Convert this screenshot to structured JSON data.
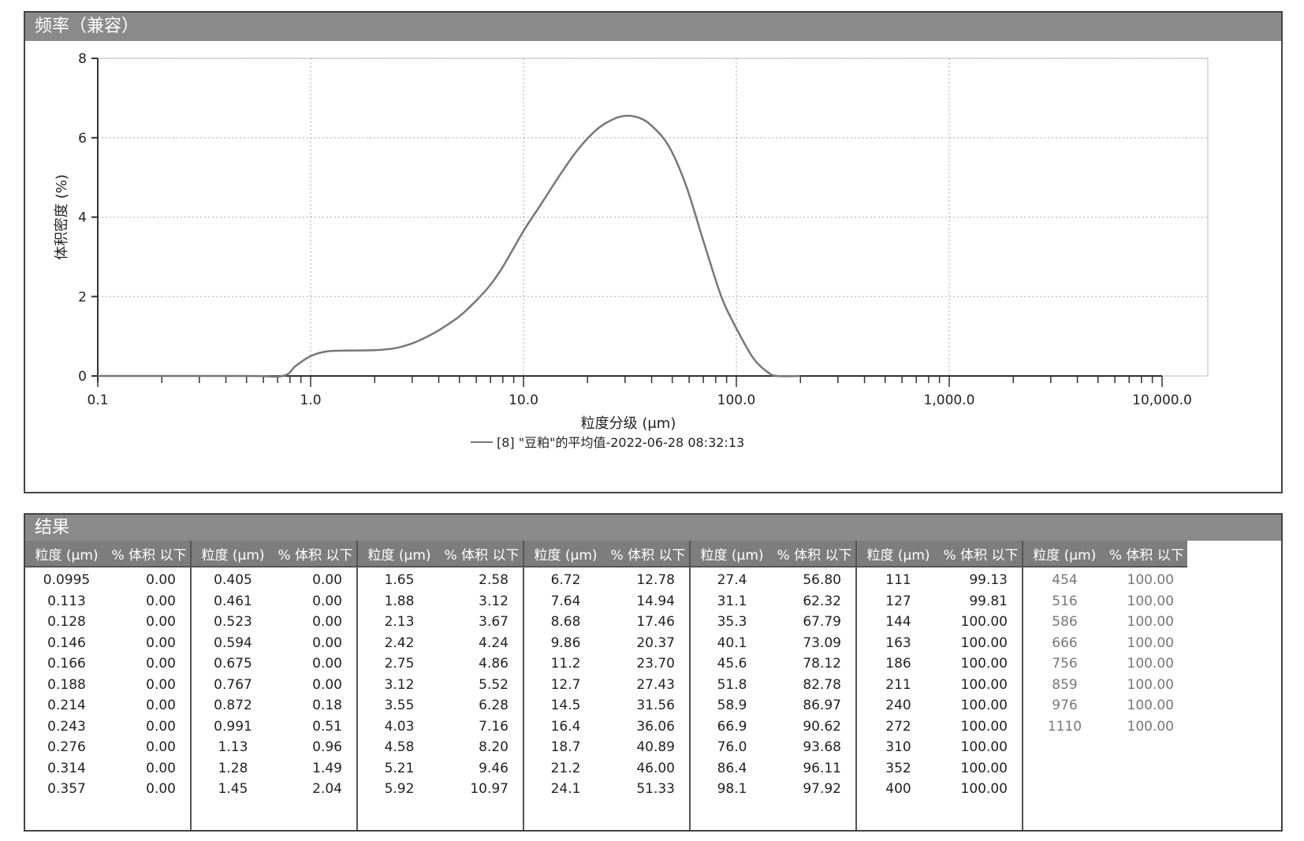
{
  "chart_panel": {
    "title": "频率（兼容）"
  },
  "chart_data": {
    "type": "line",
    "xscale": "log",
    "xlim": [
      0.1,
      10000
    ],
    "ylim": [
      0,
      8
    ],
    "xlabel": "粒度分级 (μm)",
    "ylabel": "体积密度 (%)",
    "xticklabels": [
      "0.1",
      "1.0",
      "10.0",
      "100.0",
      "1,000.0",
      "10,000.0"
    ],
    "xtickvalues": [
      0.1,
      1,
      10,
      100,
      1000,
      10000
    ],
    "yticklabels": [
      "0",
      "2",
      "4",
      "6",
      "8"
    ],
    "ytickvalues": [
      0,
      2,
      4,
      6,
      8
    ],
    "grid": true,
    "legend": "bottom-center",
    "series": [
      {
        "name": "[8] \"豆粕\"的平均值-2022-06-28 08:32:13",
        "color": "#777777",
        "points": [
          [
            0.1,
            0.0
          ],
          [
            0.5,
            0.0
          ],
          [
            0.74,
            0.0
          ],
          [
            0.85,
            0.25
          ],
          [
            1.0,
            0.5
          ],
          [
            1.2,
            0.62
          ],
          [
            1.5,
            0.64
          ],
          [
            2.0,
            0.65
          ],
          [
            2.5,
            0.7
          ],
          [
            3.0,
            0.82
          ],
          [
            3.5,
            0.98
          ],
          [
            4.0,
            1.15
          ],
          [
            5.0,
            1.5
          ],
          [
            6.0,
            1.9
          ],
          [
            7.0,
            2.3
          ],
          [
            8.0,
            2.75
          ],
          [
            10.0,
            3.65
          ],
          [
            12.0,
            4.3
          ],
          [
            15.0,
            5.1
          ],
          [
            18.0,
            5.7
          ],
          [
            22.0,
            6.2
          ],
          [
            26.0,
            6.45
          ],
          [
            30.0,
            6.55
          ],
          [
            35.0,
            6.5
          ],
          [
            40.0,
            6.3
          ],
          [
            48.0,
            5.8
          ],
          [
            58.0,
            4.8
          ],
          [
            70.0,
            3.4
          ],
          [
            85.0,
            2.0
          ],
          [
            100.0,
            1.2
          ],
          [
            120.0,
            0.45
          ],
          [
            140.0,
            0.1
          ],
          [
            155.0,
            0.0
          ],
          [
            200.0,
            0.0
          ]
        ]
      }
    ]
  },
  "results_panel": {
    "title": "结果",
    "header_size": "粒度 (μm)",
    "header_vol": "% 体积 以下",
    "columns": [
      {
        "rows": [
          [
            "0.0995",
            "0.00"
          ],
          [
            "0.113",
            "0.00"
          ],
          [
            "0.128",
            "0.00"
          ],
          [
            "0.146",
            "0.00"
          ],
          [
            "0.166",
            "0.00"
          ],
          [
            "0.188",
            "0.00"
          ],
          [
            "0.214",
            "0.00"
          ],
          [
            "0.243",
            "0.00"
          ],
          [
            "0.276",
            "0.00"
          ],
          [
            "0.314",
            "0.00"
          ],
          [
            "0.357",
            "0.00"
          ]
        ]
      },
      {
        "rows": [
          [
            "0.405",
            "0.00"
          ],
          [
            "0.461",
            "0.00"
          ],
          [
            "0.523",
            "0.00"
          ],
          [
            "0.594",
            "0.00"
          ],
          [
            "0.675",
            "0.00"
          ],
          [
            "0.767",
            "0.00"
          ],
          [
            "0.872",
            "0.18"
          ],
          [
            "0.991",
            "0.51"
          ],
          [
            "1.13",
            "0.96"
          ],
          [
            "1.28",
            "1.49"
          ],
          [
            "1.45",
            "2.04"
          ]
        ]
      },
      {
        "rows": [
          [
            "1.65",
            "2.58"
          ],
          [
            "1.88",
            "3.12"
          ],
          [
            "2.13",
            "3.67"
          ],
          [
            "2.42",
            "4.24"
          ],
          [
            "2.75",
            "4.86"
          ],
          [
            "3.12",
            "5.52"
          ],
          [
            "3.55",
            "6.28"
          ],
          [
            "4.03",
            "7.16"
          ],
          [
            "4.58",
            "8.20"
          ],
          [
            "5.21",
            "9.46"
          ],
          [
            "5.92",
            "10.97"
          ]
        ]
      },
      {
        "rows": [
          [
            "6.72",
            "12.78"
          ],
          [
            "7.64",
            "14.94"
          ],
          [
            "8.68",
            "17.46"
          ],
          [
            "9.86",
            "20.37"
          ],
          [
            "11.2",
            "23.70"
          ],
          [
            "12.7",
            "27.43"
          ],
          [
            "14.5",
            "31.56"
          ],
          [
            "16.4",
            "36.06"
          ],
          [
            "18.7",
            "40.89"
          ],
          [
            "21.2",
            "46.00"
          ],
          [
            "24.1",
            "51.33"
          ]
        ]
      },
      {
        "rows": [
          [
            "27.4",
            "56.80"
          ],
          [
            "31.1",
            "62.32"
          ],
          [
            "35.3",
            "67.79"
          ],
          [
            "40.1",
            "73.09"
          ],
          [
            "45.6",
            "78.12"
          ],
          [
            "51.8",
            "82.78"
          ],
          [
            "58.9",
            "86.97"
          ],
          [
            "66.9",
            "90.62"
          ],
          [
            "76.0",
            "93.68"
          ],
          [
            "86.4",
            "96.11"
          ],
          [
            "98.1",
            "97.92"
          ]
        ]
      },
      {
        "rows": [
          [
            "111",
            "99.13"
          ],
          [
            "127",
            "99.81"
          ],
          [
            "144",
            "100.00"
          ],
          [
            "163",
            "100.00"
          ],
          [
            "186",
            "100.00"
          ],
          [
            "211",
            "100.00"
          ],
          [
            "240",
            "100.00"
          ],
          [
            "272",
            "100.00"
          ],
          [
            "310",
            "100.00"
          ],
          [
            "352",
            "100.00"
          ],
          [
            "400",
            "100.00"
          ]
        ]
      },
      {
        "rows": [
          [
            "454",
            "100.00"
          ],
          [
            "516",
            "100.00"
          ],
          [
            "586",
            "100.00"
          ],
          [
            "666",
            "100.00"
          ],
          [
            "756",
            "100.00"
          ],
          [
            "859",
            "100.00"
          ],
          [
            "976",
            "100.00"
          ],
          [
            "1110",
            "100.00"
          ]
        ]
      }
    ]
  }
}
